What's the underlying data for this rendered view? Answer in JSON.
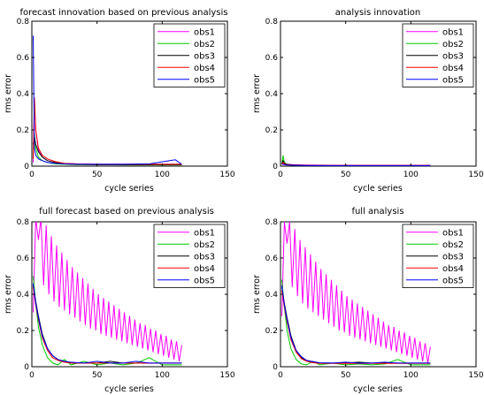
{
  "chart_data": [
    {
      "type": "line",
      "title": "forecast innovation based on previous analysis",
      "xlabel": "cycle series",
      "ylabel": "rms error",
      "xlim": [
        0,
        150
      ],
      "ylim": [
        0,
        0.8
      ],
      "xticks": [
        0,
        50,
        100,
        150
      ],
      "yticks": [
        0,
        0.2,
        0.4,
        0.6,
        0.8
      ],
      "xtick_labels": [
        "0",
        "50",
        "100",
        "150"
      ],
      "ytick_labels": [
        "0",
        "0.2",
        "0.4",
        "0.6",
        "0.8"
      ],
      "legend_position": "top-right",
      "series": [
        {
          "name": "obs1",
          "color": "#ff00ff",
          "x": [
            1,
            2,
            3,
            5,
            8,
            12,
            18,
            25,
            35,
            50,
            70,
            90,
            110,
            115
          ],
          "y": [
            0.02,
            0.35,
            0.2,
            0.09,
            0.05,
            0.03,
            0.02,
            0.015,
            0.012,
            0.01,
            0.01,
            0.01,
            0.01,
            0.01
          ]
        },
        {
          "name": "obs2",
          "color": "#00cc00",
          "x": [
            1,
            2,
            3,
            5,
            8,
            12,
            18,
            25,
            35,
            50,
            70,
            90,
            110,
            115
          ],
          "y": [
            0.06,
            0.18,
            0.1,
            0.05,
            0.03,
            0.02,
            0.012,
            0.01,
            0.008,
            0.008,
            0.007,
            0.007,
            0.007,
            0.007
          ]
        },
        {
          "name": "obs3",
          "color": "#000000",
          "x": [
            1,
            2,
            3,
            5,
            8,
            12,
            18,
            25,
            35,
            50,
            70,
            90,
            110,
            115
          ],
          "y": [
            0.12,
            0.16,
            0.12,
            0.08,
            0.05,
            0.03,
            0.02,
            0.012,
            0.01,
            0.008,
            0.008,
            0.008,
            0.008,
            0.008
          ]
        },
        {
          "name": "obs4",
          "color": "#ff0000",
          "x": [
            1,
            2,
            3,
            5,
            8,
            12,
            18,
            25,
            35,
            50,
            70,
            90,
            110,
            115
          ],
          "y": [
            0.04,
            0.38,
            0.2,
            0.1,
            0.06,
            0.04,
            0.025,
            0.015,
            0.012,
            0.01,
            0.01,
            0.01,
            0.01,
            0.01
          ]
        },
        {
          "name": "obs5",
          "color": "#0000ff",
          "x": [
            1,
            2,
            3,
            5,
            8,
            12,
            18,
            25,
            35,
            50,
            70,
            90,
            110,
            115
          ],
          "y": [
            0.72,
            0.1,
            0.06,
            0.04,
            0.03,
            0.02,
            0.015,
            0.012,
            0.01,
            0.01,
            0.01,
            0.012,
            0.035,
            0.01
          ]
        }
      ]
    },
    {
      "type": "line",
      "title": "analysis innovation",
      "xlabel": "cycle series",
      "ylabel": "rms error",
      "xlim": [
        0,
        150
      ],
      "ylim": [
        0,
        0.8
      ],
      "xticks": [
        0,
        50,
        100,
        150
      ],
      "yticks": [
        0,
        0.2,
        0.4,
        0.6,
        0.8
      ],
      "xtick_labels": [
        "0",
        "50",
        "100",
        "150"
      ],
      "ytick_labels": [
        "0",
        "0.2",
        "0.4",
        "0.6",
        "0.8"
      ],
      "legend_position": "top-right",
      "series": [
        {
          "name": "obs1",
          "color": "#ff00ff",
          "x": [
            1,
            2,
            3,
            5,
            10,
            20,
            40,
            60,
            80,
            100,
            115
          ],
          "y": [
            0.01,
            0.015,
            0.012,
            0.01,
            0.008,
            0.006,
            0.005,
            0.005,
            0.005,
            0.005,
            0.005
          ]
        },
        {
          "name": "obs2",
          "color": "#00cc00",
          "x": [
            1,
            2,
            3,
            5,
            10,
            20,
            40,
            60,
            80,
            100,
            115
          ],
          "y": [
            0.01,
            0.06,
            0.02,
            0.01,
            0.005,
            0.004,
            0.003,
            0.003,
            0.003,
            0.003,
            0.003
          ]
        },
        {
          "name": "obs3",
          "color": "#000000",
          "x": [
            1,
            2,
            3,
            5,
            10,
            20,
            40,
            60,
            80,
            100,
            115
          ],
          "y": [
            0.01,
            0.03,
            0.015,
            0.01,
            0.006,
            0.004,
            0.003,
            0.003,
            0.003,
            0.003,
            0.003
          ]
        },
        {
          "name": "obs4",
          "color": "#ff0000",
          "x": [
            1,
            2,
            3,
            5,
            10,
            20,
            40,
            60,
            80,
            100,
            115
          ],
          "y": [
            0.01,
            0.02,
            0.012,
            0.008,
            0.006,
            0.005,
            0.004,
            0.004,
            0.004,
            0.004,
            0.004
          ]
        },
        {
          "name": "obs5",
          "color": "#0000ff",
          "x": [
            1,
            2,
            3,
            5,
            10,
            20,
            40,
            60,
            80,
            100,
            115
          ],
          "y": [
            0.01,
            0.01,
            0.008,
            0.006,
            0.005,
            0.004,
            0.003,
            0.003,
            0.003,
            0.003,
            0.003
          ]
        }
      ]
    },
    {
      "type": "line",
      "title": "full forecast based on previous analysis",
      "xlabel": "cycle series",
      "ylabel": "rms error",
      "xlim": [
        0,
        150
      ],
      "ylim": [
        0,
        0.8
      ],
      "xticks": [
        0,
        50,
        100,
        150
      ],
      "yticks": [
        0,
        0.2,
        0.4,
        0.6,
        0.8
      ],
      "xtick_labels": [
        "0",
        "50",
        "100",
        "150"
      ],
      "ytick_labels": [
        "0",
        "0.2",
        "0.4",
        "0.6",
        "0.8"
      ],
      "legend_position": "top-right",
      "series": [
        {
          "name": "obs1",
          "color": "#ff00ff",
          "x": [
            1,
            3,
            5,
            7,
            9,
            11,
            13,
            15,
            17,
            19,
            21,
            23,
            25,
            27,
            29,
            31,
            33,
            35,
            37,
            39,
            41,
            43,
            45,
            47,
            49,
            51,
            53,
            55,
            57,
            59,
            61,
            63,
            65,
            67,
            69,
            71,
            73,
            75,
            77,
            79,
            81,
            83,
            85,
            87,
            89,
            91,
            93,
            95,
            97,
            99,
            101,
            103,
            105,
            107,
            109,
            111,
            113,
            115
          ],
          "y": [
            0.3,
            0.82,
            0.7,
            0.82,
            0.45,
            0.78,
            0.4,
            0.72,
            0.36,
            0.67,
            0.33,
            0.63,
            0.31,
            0.59,
            0.29,
            0.55,
            0.27,
            0.52,
            0.25,
            0.49,
            0.23,
            0.46,
            0.21,
            0.43,
            0.2,
            0.4,
            0.18,
            0.38,
            0.17,
            0.36,
            0.16,
            0.34,
            0.15,
            0.32,
            0.14,
            0.3,
            0.13,
            0.28,
            0.12,
            0.26,
            0.11,
            0.24,
            0.1,
            0.23,
            0.09,
            0.21,
            0.08,
            0.2,
            0.07,
            0.18,
            0.06,
            0.17,
            0.05,
            0.15,
            0.04,
            0.14,
            0.03,
            0.12
          ]
        },
        {
          "name": "obs2",
          "color": "#00cc00",
          "x": [
            1,
            3,
            5,
            8,
            12,
            16,
            20,
            25,
            30,
            40,
            50,
            60,
            70,
            80,
            90,
            100,
            110,
            115
          ],
          "y": [
            0.5,
            0.35,
            0.22,
            0.12,
            0.05,
            0.02,
            0.01,
            0.04,
            0.01,
            0.03,
            0.01,
            0.02,
            0.01,
            0.02,
            0.05,
            0.01,
            0.01,
            0.01
          ]
        },
        {
          "name": "obs3",
          "color": "#000000",
          "x": [
            1,
            3,
            5,
            8,
            12,
            16,
            20,
            25,
            30,
            40,
            50,
            60,
            70,
            80,
            90,
            100,
            110,
            115
          ],
          "y": [
            0.45,
            0.36,
            0.28,
            0.18,
            0.1,
            0.06,
            0.04,
            0.03,
            0.02,
            0.02,
            0.02,
            0.03,
            0.02,
            0.02,
            0.02,
            0.02,
            0.02,
            0.02
          ]
        },
        {
          "name": "obs4",
          "color": "#ff0000",
          "x": [
            1,
            3,
            5,
            8,
            12,
            16,
            20,
            25,
            30,
            40,
            50,
            60,
            70,
            80,
            90,
            100,
            110,
            115
          ],
          "y": [
            0.44,
            0.34,
            0.26,
            0.16,
            0.09,
            0.05,
            0.035,
            0.025,
            0.02,
            0.02,
            0.02,
            0.02,
            0.02,
            0.02,
            0.02,
            0.02,
            0.02,
            0.02
          ]
        },
        {
          "name": "obs5",
          "color": "#0000ff",
          "x": [
            1,
            3,
            5,
            8,
            12,
            16,
            20,
            25,
            30,
            40,
            50,
            60,
            70,
            80,
            90,
            100,
            110,
            115
          ],
          "y": [
            0.46,
            0.35,
            0.27,
            0.17,
            0.1,
            0.06,
            0.04,
            0.03,
            0.025,
            0.02,
            0.03,
            0.02,
            0.02,
            0.03,
            0.02,
            0.02,
            0.02,
            0.02
          ]
        }
      ]
    },
    {
      "type": "line",
      "title": "full analysis",
      "xlabel": "cycle series",
      "ylabel": "rms error",
      "xlim": [
        0,
        150
      ],
      "ylim": [
        0,
        0.8
      ],
      "xticks": [
        0,
        50,
        100,
        150
      ],
      "yticks": [
        0,
        0.2,
        0.4,
        0.6,
        0.8
      ],
      "xtick_labels": [
        "0",
        "50",
        "100",
        "150"
      ],
      "ytick_labels": [
        "0",
        "0.2",
        "0.4",
        "0.6",
        "0.8"
      ],
      "legend_position": "top-right",
      "series": [
        {
          "name": "obs1",
          "color": "#ff00ff",
          "x": [
            1,
            3,
            5,
            7,
            9,
            11,
            13,
            15,
            17,
            19,
            21,
            23,
            25,
            27,
            29,
            31,
            33,
            35,
            37,
            39,
            41,
            43,
            45,
            47,
            49,
            51,
            53,
            55,
            57,
            59,
            61,
            63,
            65,
            67,
            69,
            71,
            73,
            75,
            77,
            79,
            81,
            83,
            85,
            87,
            89,
            91,
            93,
            95,
            97,
            99,
            101,
            103,
            105,
            107,
            109,
            111,
            113,
            115
          ],
          "y": [
            0.28,
            0.8,
            0.68,
            0.8,
            0.44,
            0.76,
            0.39,
            0.7,
            0.35,
            0.66,
            0.32,
            0.62,
            0.3,
            0.58,
            0.28,
            0.54,
            0.26,
            0.51,
            0.24,
            0.48,
            0.22,
            0.45,
            0.2,
            0.42,
            0.19,
            0.39,
            0.17,
            0.37,
            0.16,
            0.35,
            0.15,
            0.33,
            0.14,
            0.31,
            0.13,
            0.29,
            0.12,
            0.27,
            0.11,
            0.25,
            0.1,
            0.23,
            0.09,
            0.22,
            0.08,
            0.2,
            0.07,
            0.19,
            0.06,
            0.17,
            0.05,
            0.16,
            0.04,
            0.14,
            0.03,
            0.13,
            0.02,
            0.11
          ]
        },
        {
          "name": "obs2",
          "color": "#00cc00",
          "x": [
            1,
            3,
            5,
            8,
            12,
            16,
            20,
            25,
            30,
            40,
            50,
            60,
            70,
            80,
            90,
            100,
            110,
            115
          ],
          "y": [
            0.48,
            0.33,
            0.2,
            0.1,
            0.04,
            0.015,
            0.01,
            0.03,
            0.01,
            0.02,
            0.01,
            0.015,
            0.01,
            0.015,
            0.04,
            0.01,
            0.01,
            0.01
          ]
        },
        {
          "name": "obs3",
          "color": "#000000",
          "x": [
            1,
            3,
            5,
            8,
            12,
            16,
            20,
            25,
            30,
            40,
            50,
            60,
            70,
            80,
            90,
            100,
            110,
            115
          ],
          "y": [
            0.44,
            0.35,
            0.27,
            0.17,
            0.09,
            0.05,
            0.035,
            0.025,
            0.02,
            0.02,
            0.02,
            0.025,
            0.02,
            0.02,
            0.02,
            0.02,
            0.02,
            0.02
          ]
        },
        {
          "name": "obs4",
          "color": "#ff0000",
          "x": [
            1,
            3,
            5,
            8,
            12,
            16,
            20,
            25,
            30,
            40,
            50,
            60,
            70,
            80,
            90,
            100,
            110,
            115
          ],
          "y": [
            0.42,
            0.33,
            0.25,
            0.15,
            0.08,
            0.045,
            0.03,
            0.022,
            0.018,
            0.018,
            0.018,
            0.018,
            0.018,
            0.018,
            0.018,
            0.018,
            0.018,
            0.018
          ]
        },
        {
          "name": "obs5",
          "color": "#0000ff",
          "x": [
            1,
            3,
            5,
            8,
            12,
            16,
            20,
            25,
            30,
            40,
            50,
            60,
            70,
            80,
            90,
            100,
            110,
            115
          ],
          "y": [
            0.45,
            0.34,
            0.26,
            0.16,
            0.09,
            0.055,
            0.035,
            0.028,
            0.022,
            0.02,
            0.025,
            0.02,
            0.02,
            0.025,
            0.02,
            0.02,
            0.02,
            0.02
          ]
        }
      ]
    }
  ]
}
